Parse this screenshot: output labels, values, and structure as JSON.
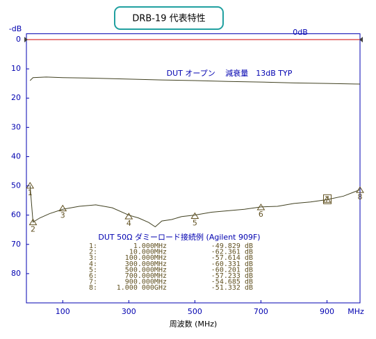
{
  "chart_data": {
    "type": "line",
    "title": "DRB-19  代表特性",
    "xlabel": "周波数 (MHz)",
    "ylabel": "-dB",
    "xlim": [
      -10,
      1000
    ],
    "ylim": [
      -2,
      90
    ],
    "y_inverted": true,
    "xticks": [
      100,
      300,
      500,
      700,
      900,
      {
        "value": 1000,
        "label": "MHz"
      }
    ],
    "yticks": [
      0,
      10,
      20,
      30,
      40,
      50,
      60,
      70,
      80
    ],
    "reference": {
      "label": "0dB",
      "value": 0,
      "color": "#d00000"
    },
    "series": [
      {
        "name": "DUT オープン　 減衰量　13dB TYP",
        "color": "#404020",
        "x": [
          1,
          10,
          50,
          100,
          200,
          300,
          400,
          500,
          600,
          700,
          800,
          900,
          1000
        ],
        "values": [
          14,
          13,
          12.8,
          13,
          13.2,
          13.5,
          13.8,
          14,
          14.3,
          14.5,
          14.8,
          15,
          15.2
        ]
      },
      {
        "name": "DUT  50Ω  ダミーロード接続例 (Agilent 909F)",
        "color": "#404020",
        "x": [
          1,
          10,
          30,
          60,
          100,
          150,
          200,
          250,
          300,
          330,
          360,
          380,
          400,
          430,
          460,
          500,
          550,
          600,
          650,
          700,
          750,
          800,
          850,
          900,
          950,
          1000
        ],
        "values": [
          49.8,
          62.4,
          61,
          59.5,
          58,
          57,
          56.5,
          57.5,
          60,
          61,
          62.5,
          64,
          62,
          61.5,
          60.5,
          60,
          59,
          58.5,
          58,
          57.2,
          57,
          56,
          55.5,
          54.7,
          53.5,
          51.3
        ]
      }
    ],
    "markers": {
      "color": "#605020",
      "labels": [
        "1",
        "2",
        "3",
        "4",
        "5",
        "6",
        "7",
        "8"
      ],
      "index_labels": [
        "1:",
        "2:",
        "3:",
        "4:",
        "5:",
        "6:",
        "7:",
        "8:"
      ],
      "x": [
        1,
        10,
        100,
        300,
        500,
        700,
        900,
        1000
      ],
      "x_labels": [
        "1.000MHz",
        "10.000MHz",
        "100.000MHz",
        "300.000MHz",
        "500.000MHz",
        "700.000MHz",
        "900.000MHz",
        "1.000 000GHz"
      ],
      "values": [
        49.829,
        62.361,
        57.614,
        60.331,
        60.201,
        57.233,
        54.685,
        51.332
      ],
      "value_labels": [
        "-49.829 dB",
        "-62.361 dB",
        "-57.614 dB",
        "-60.331 dB",
        "-60.201 dB",
        "-57.233 dB",
        "-54.685 dB",
        "-51.332 dB"
      ]
    }
  }
}
